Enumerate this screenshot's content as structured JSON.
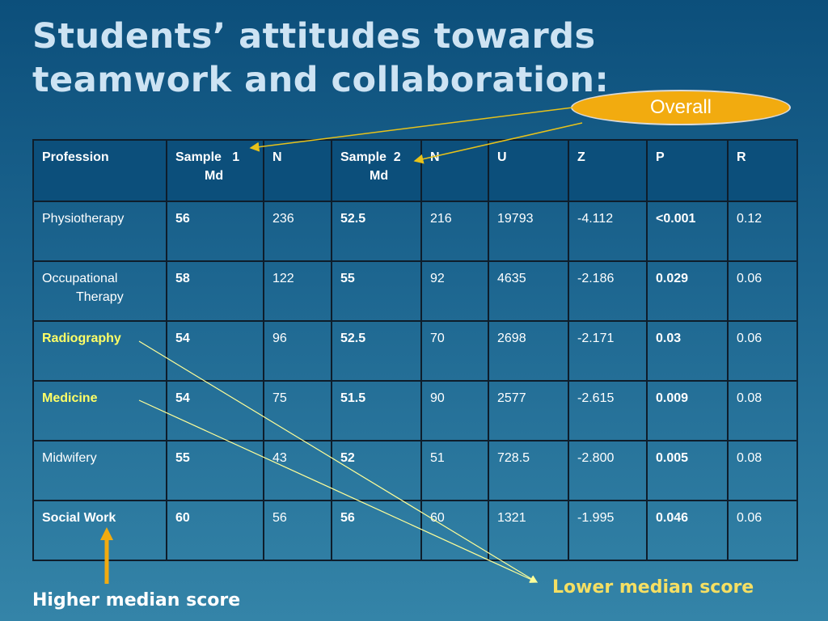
{
  "title": "Students’ attitudes towards teamwork and collaboration:",
  "callout": "Overall",
  "table": {
    "headers": {
      "profession": "Profession",
      "sample1_a": "Sample   1",
      "sample1_b": "Md",
      "n1": "N",
      "sample2_a": "Sample  2",
      "sample2_b": "Md",
      "n2": "N",
      "u": "U",
      "z": "Z",
      "p": "P",
      "r": "R"
    },
    "rows": [
      {
        "profession": "Physiotherapy",
        "s1": "56",
        "n1": "236",
        "s2": "52.5",
        "n2": "216",
        "u": "19793",
        "z": "-4.112",
        "p": "<0.001",
        "r": "0.12"
      },
      {
        "profession_a": "Occupational",
        "profession_b": "Therapy",
        "s1": "58",
        "n1": "122",
        "s2": "55",
        "n2": "92",
        "u": "4635",
        "z": "-2.186",
        "p": "0.029",
        "r": "0.06"
      },
      {
        "profession": "Radiography",
        "s1": "54",
        "n1": "96",
        "s2": "52.5",
        "n2": "70",
        "u": "2698",
        "z": "-2.171",
        "p": "0.03",
        "r": "0.06"
      },
      {
        "profession": "Medicine",
        "s1": "54",
        "n1": "75",
        "s2": "51.5",
        "n2": "90",
        "u": "2577",
        "z": "-2.615",
        "p": "0.009",
        "r": "0.08"
      },
      {
        "profession": "Midwifery",
        "s1": "55",
        "n1": "43",
        "s2": "52",
        "n2": "51",
        "u": "728.5",
        "z": "-2.800",
        "p": "0.005",
        "r": "0.08"
      },
      {
        "profession": "Social Work",
        "s1": "60",
        "n1": "56",
        "s2": "56",
        "n2": "60",
        "u": "1321",
        "z": "-1.995",
        "p": "0.046",
        "r": "0.06"
      }
    ]
  },
  "labels": {
    "higher": "Higher median score",
    "lower": "Lower median score"
  },
  "colors": {
    "background": "#1d6690",
    "title": "#cde3f3",
    "callout_fill": "#f2ab0f",
    "highlight_text": "#ffff66",
    "lower_label": "#f5df63",
    "arrow": "#e8c21a"
  }
}
